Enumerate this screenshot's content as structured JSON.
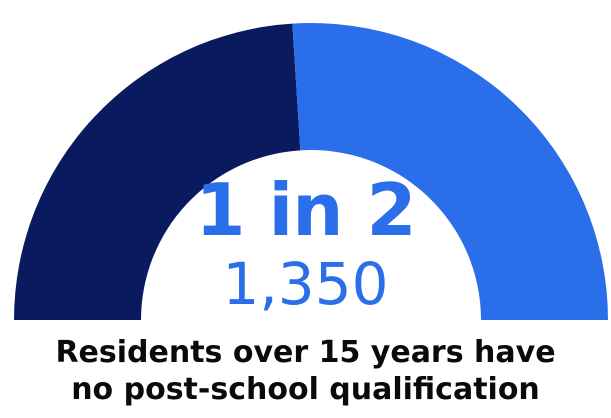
{
  "chart_data": {
    "type": "gauge",
    "headline": "1 in 2",
    "count": "1,350",
    "caption_line1": "Residents over 15 years have",
    "caption_line2": "no post-school qualification",
    "segments": [
      {
        "value": 0.48,
        "color": "#0a1a5e"
      },
      {
        "value": 0.52,
        "color": "#2b6eea"
      }
    ]
  },
  "colors": {
    "accent_text": "#2b6eea",
    "caption_text": "#0a0a0a"
  }
}
